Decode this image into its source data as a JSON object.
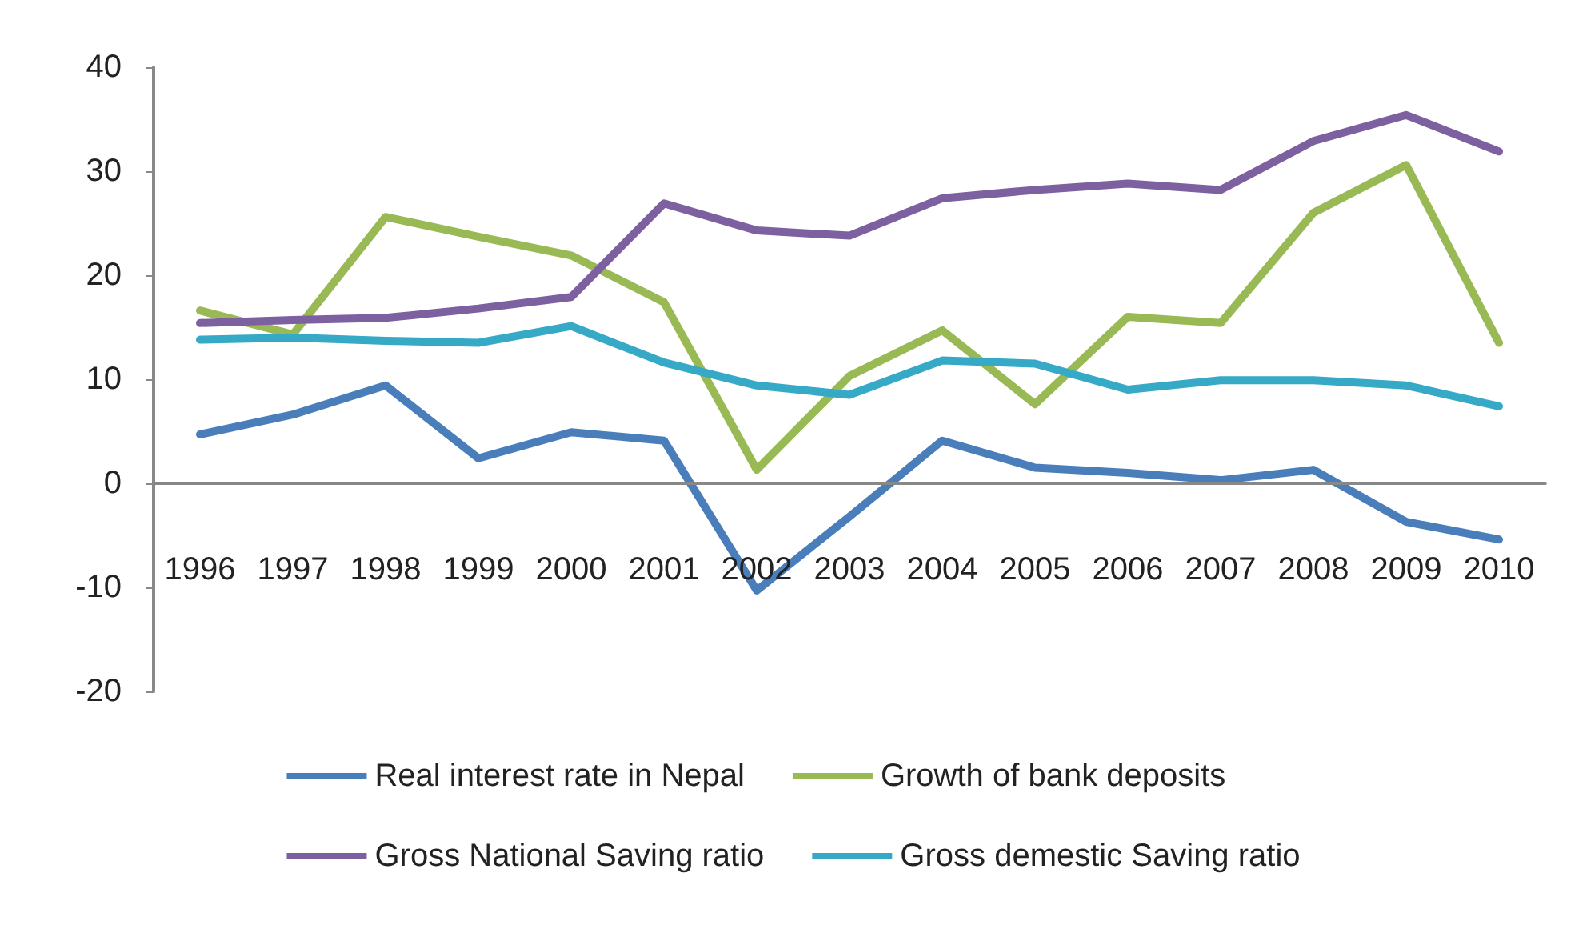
{
  "chart_data": {
    "type": "line",
    "categories": [
      "1996",
      "1997",
      "1998",
      "1999",
      "2000",
      "2001",
      "2002",
      "2003",
      "2004",
      "2005",
      "2006",
      "2007",
      "2008",
      "2009",
      "2010"
    ],
    "series": [
      {
        "name": "Real interest rate in Nepal",
        "color": "#4a7ebb",
        "values": [
          4.7,
          6.6,
          9.4,
          2.4,
          4.9,
          4.1,
          -10.3,
          -3.2,
          4.1,
          1.5,
          1.0,
          0.3,
          1.3,
          -3.7,
          -5.4
        ]
      },
      {
        "name": "Growth of bank deposits",
        "color": "#98b954",
        "values": [
          16.6,
          14.3,
          25.6,
          23.7,
          21.9,
          17.4,
          1.3,
          10.3,
          14.7,
          7.6,
          16.0,
          15.4,
          26.0,
          30.6,
          13.5
        ]
      },
      {
        "name": "Gross National Saving ratio",
        "color": "#7d60a0",
        "values": [
          15.4,
          15.7,
          15.9,
          16.8,
          17.9,
          26.9,
          24.3,
          23.8,
          27.4,
          28.2,
          28.8,
          28.2,
          32.9,
          35.4,
          31.9
        ]
      },
      {
        "name": "Gross demestic Saving ratio",
        "color": "#35a9c6",
        "values": [
          13.8,
          14.0,
          13.7,
          13.5,
          15.1,
          11.6,
          9.4,
          8.5,
          11.8,
          11.5,
          9.0,
          9.9,
          9.9,
          9.4,
          7.4
        ]
      }
    ],
    "ylim": [
      -20,
      40
    ],
    "yticks": [
      -20,
      -10,
      0,
      10,
      20,
      30,
      40
    ],
    "grid": false,
    "legend": "bottom",
    "marker": "none",
    "line_style": "solid"
  }
}
